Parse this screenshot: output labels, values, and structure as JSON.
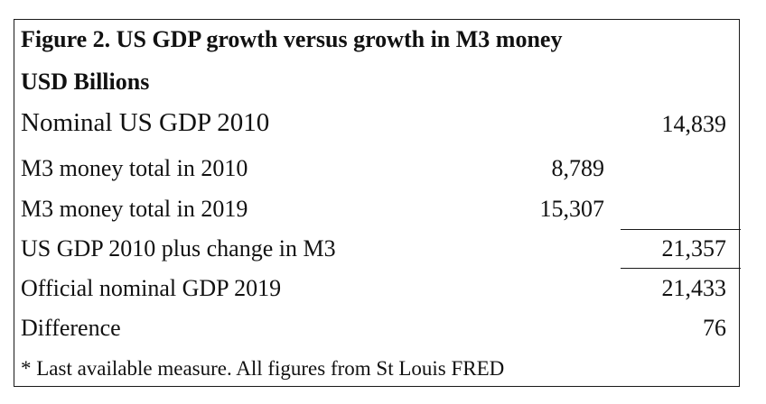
{
  "table": {
    "title_line1": "Figure 2. US GDP growth  versus growth in M3 money",
    "title_line2": "USD Billions",
    "rows": [
      {
        "label": "Nominal US GDP 2010",
        "col1": "",
        "col2": "14,839"
      },
      {
        "label": "M3 money total in 2010",
        "col1": "8,789",
        "col2": ""
      },
      {
        "label": "M3 money total in 2019",
        "col1": "15,307",
        "col2": ""
      },
      {
        "label": "US GDP 2010 plus change in M3",
        "col1": "",
        "col2": "21,357"
      },
      {
        "label": "Official nominal GDP 2019",
        "col1": "",
        "col2": "21,433"
      },
      {
        "label": "Difference",
        "col1": "",
        "col2": "76"
      }
    ],
    "footnote": "* Last available measure. All figures from St Louis FRED"
  }
}
